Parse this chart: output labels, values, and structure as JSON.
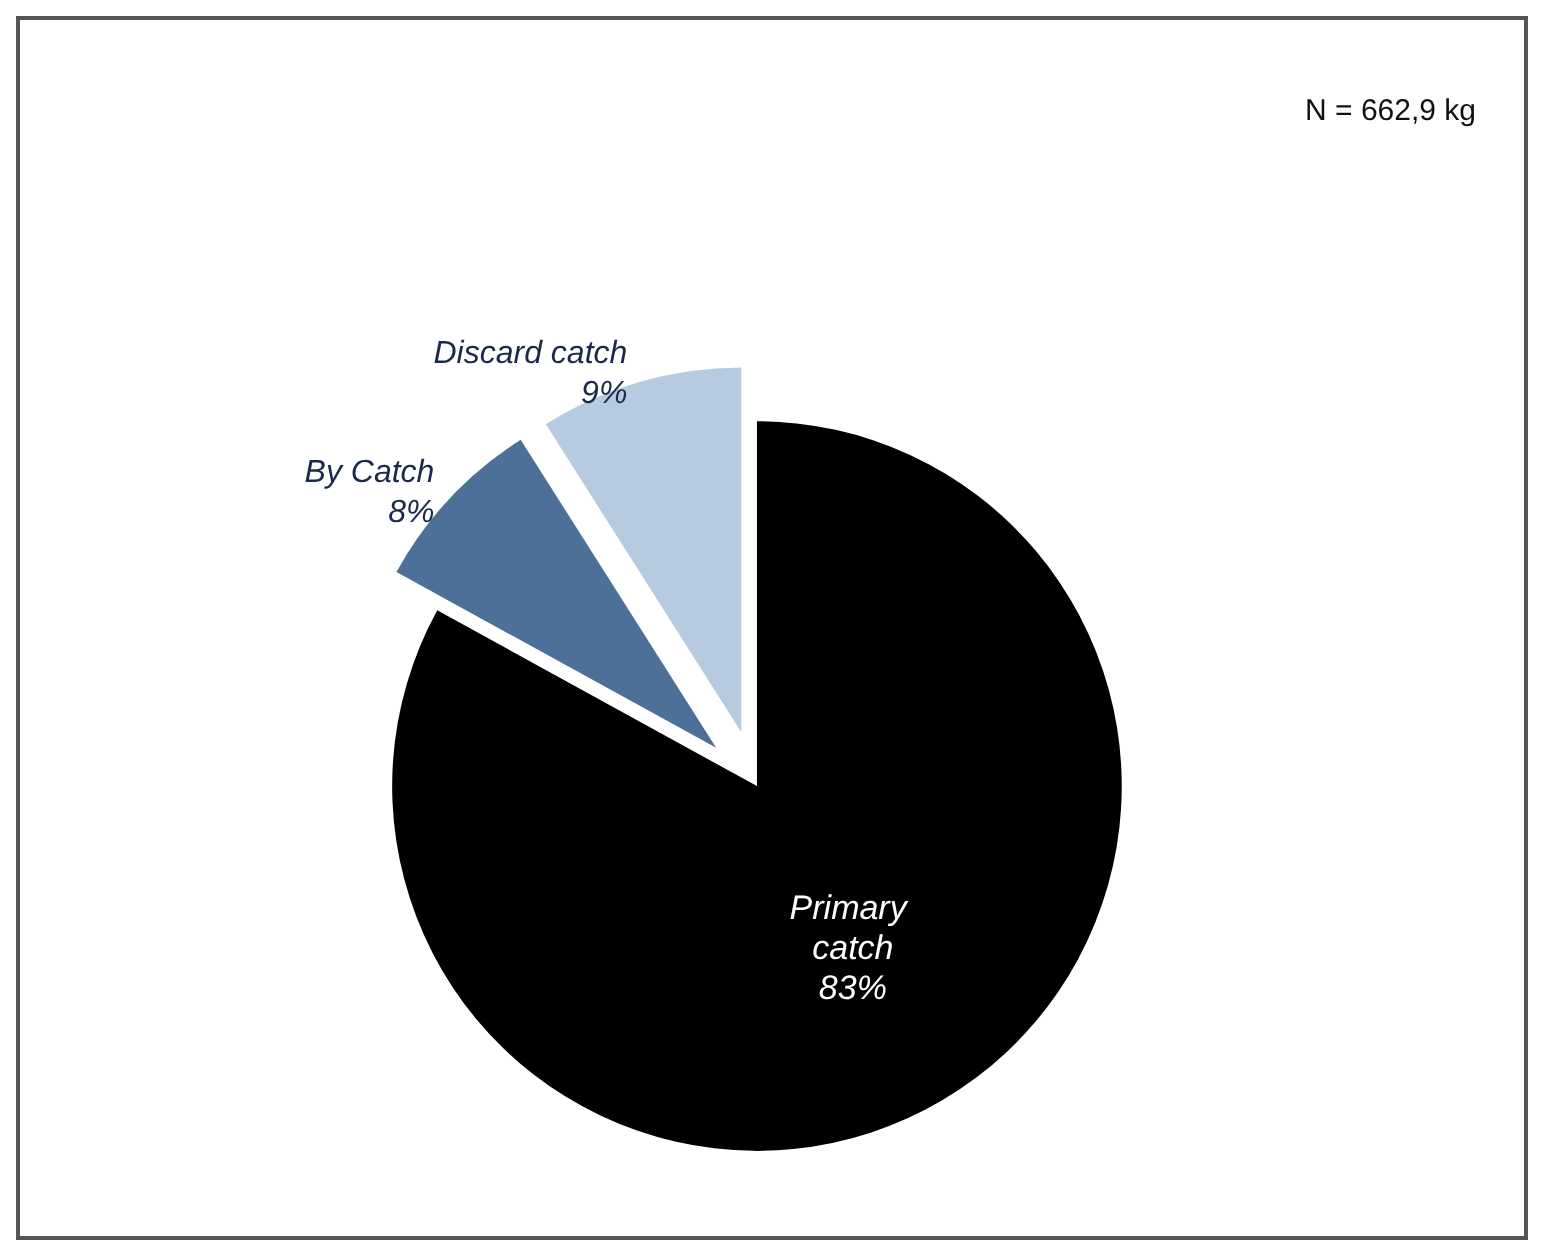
{
  "chart_data": {
    "type": "pie",
    "categories": [
      "Primary catch",
      "By Catch",
      "Discard catch"
    ],
    "values": [
      83,
      8,
      9
    ],
    "colors": [
      "#000000",
      "#4d7099",
      "#b7cbe0"
    ],
    "value_labels": [
      "83%",
      "8%",
      "9%"
    ],
    "annotations": [
      "N = 662,9 kg"
    ]
  }
}
